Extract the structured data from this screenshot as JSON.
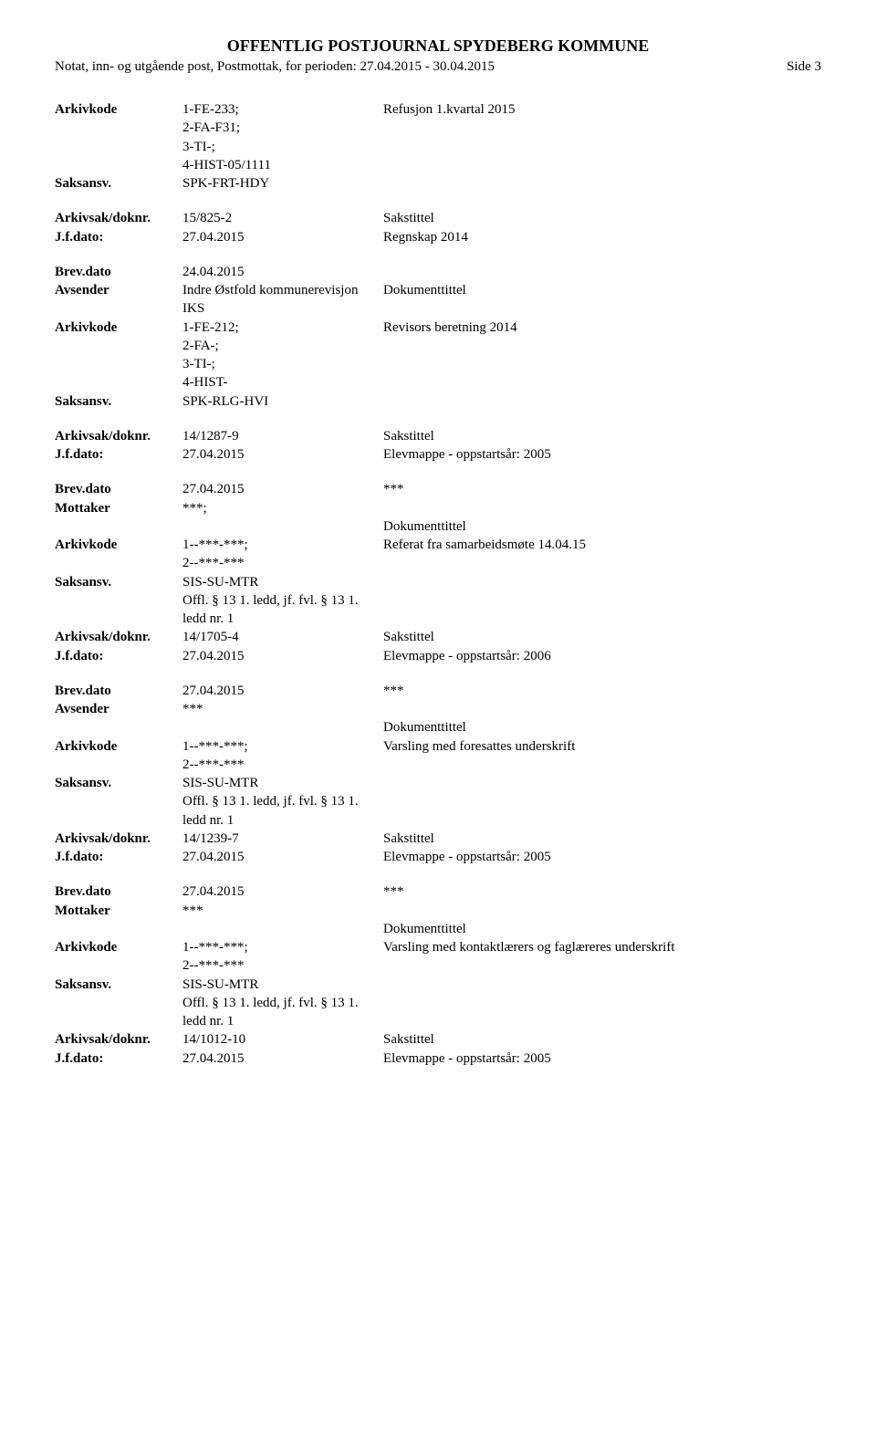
{
  "header": {
    "title": "OFFENTLIG POSTJOURNAL SPYDEBERG KOMMUNE",
    "subtitle": "Notat, inn- og utgående post, Postmottak, for perioden: 27.04.2015 - 30.04.2015",
    "page": "Side 3"
  },
  "records": [
    {
      "rows": [
        {
          "label": "Arkivkode",
          "col2": "1-FE-233;\n2-FA-F31;\n3-TI-;\n4-HIST-05/1111",
          "col3": "Refusjon 1.kvartal 2015"
        },
        {
          "label": "Saksansv.",
          "col2": "SPK-FRT-HDY",
          "col3": ""
        }
      ]
    },
    {
      "rows": [
        {
          "label": "Arkivsak/doknr.",
          "col2": "15/825-2",
          "col3": "Sakstittel"
        },
        {
          "label": "J.f.dato:",
          "col2": "27.04.2015",
          "col3": "Regnskap 2014"
        }
      ]
    },
    {
      "rows": [
        {
          "label": "Brev.dato",
          "col2": "24.04.2015",
          "col3": ""
        },
        {
          "label": "Avsender",
          "col2": "Indre Østfold kommunerevisjon IKS",
          "col3": "Dokumenttittel"
        },
        {
          "label": "Arkivkode",
          "col2": "1-FE-212;\n2-FA-;\n3-TI-;\n4-HIST-",
          "col3": "Revisors beretning 2014"
        },
        {
          "label": "Saksansv.",
          "col2": "SPK-RLG-HVI",
          "col3": ""
        }
      ]
    },
    {
      "rows": [
        {
          "label": "Arkivsak/doknr.",
          "col2": "14/1287-9",
          "col3": "Sakstittel"
        },
        {
          "label": "J.f.dato:",
          "col2": "27.04.2015",
          "col3": "Elevmappe - oppstartsår: 2005"
        }
      ]
    },
    {
      "rows": [
        {
          "label": "Brev.dato",
          "col2": "27.04.2015",
          "col3": "***"
        },
        {
          "label": "Mottaker",
          "col2": "***;",
          "col3": ""
        },
        {
          "label": "",
          "col2": "",
          "col3": "Dokumenttittel"
        },
        {
          "label": "Arkivkode",
          "col2": "1--***-***;\n2--***-***",
          "col3": "Referat fra samarbeidsmøte 14.04.15"
        },
        {
          "label": "Saksansv.",
          "col2": "SIS-SU-MTR",
          "col3": ""
        },
        {
          "label": "",
          "col2": "Offl. § 13 1. ledd, jf. fvl. § 13 1. ledd nr. 1",
          "col3": ""
        },
        {
          "label": "Arkivsak/doknr.",
          "col2": "14/1705-4",
          "col3": "Sakstittel"
        },
        {
          "label": "J.f.dato:",
          "col2": "27.04.2015",
          "col3": "Elevmappe - oppstartsår: 2006"
        }
      ]
    },
    {
      "rows": [
        {
          "label": "Brev.dato",
          "col2": "27.04.2015",
          "col3": "***"
        },
        {
          "label": "Avsender",
          "col2": "***",
          "col3": ""
        },
        {
          "label": "",
          "col2": "",
          "col3": "Dokumenttittel"
        },
        {
          "label": "Arkivkode",
          "col2": "1--***-***;\n2--***-***",
          "col3": "Varsling med foresattes underskrift"
        },
        {
          "label": "Saksansv.",
          "col2": "SIS-SU-MTR",
          "col3": ""
        },
        {
          "label": "",
          "col2": "Offl. § 13 1. ledd, jf. fvl. § 13 1. ledd nr. 1",
          "col3": ""
        },
        {
          "label": "Arkivsak/doknr.",
          "col2": "14/1239-7",
          "col3": "Sakstittel"
        },
        {
          "label": "J.f.dato:",
          "col2": "27.04.2015",
          "col3": "Elevmappe - oppstartsår: 2005"
        }
      ]
    },
    {
      "rows": [
        {
          "label": "Brev.dato",
          "col2": "27.04.2015",
          "col3": "***"
        },
        {
          "label": "Mottaker",
          "col2": "***",
          "col3": ""
        },
        {
          "label": "",
          "col2": "",
          "col3": "Dokumenttittel"
        },
        {
          "label": "Arkivkode",
          "col2": "1--***-***;\n2--***-***",
          "col3": "Varsling med kontaktlærers og faglæreres underskrift"
        },
        {
          "label": "Saksansv.",
          "col2": "SIS-SU-MTR",
          "col3": ""
        },
        {
          "label": "",
          "col2": "Offl. § 13 1. ledd, jf. fvl. § 13 1. ledd nr. 1",
          "col3": ""
        },
        {
          "label": "Arkivsak/doknr.",
          "col2": "14/1012-10",
          "col3": "Sakstittel"
        },
        {
          "label": "J.f.dato:",
          "col2": "27.04.2015",
          "col3": "Elevmappe - oppstartsår: 2005"
        }
      ]
    }
  ]
}
